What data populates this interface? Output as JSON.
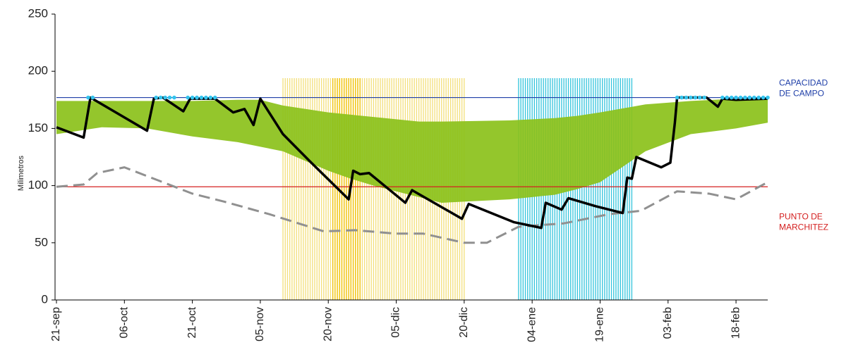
{
  "chart_data": {
    "type": "line",
    "y_label": "Milimetros",
    "xlim": [
      0,
      157
    ],
    "ylim": [
      0,
      250
    ],
    "yticks": [
      0,
      50,
      100,
      150,
      200,
      250
    ],
    "xticks": [
      {
        "value": 0,
        "label": "21-sep"
      },
      {
        "value": 15,
        "label": "06-oct"
      },
      {
        "value": 30,
        "label": "21-oct"
      },
      {
        "value": 45,
        "label": "05-nov"
      },
      {
        "value": 60,
        "label": "20-nov"
      },
      {
        "value": 75,
        "label": "05-dic"
      },
      {
        "value": 90,
        "label": "20-dic"
      },
      {
        "value": 105,
        "label": "04-ene"
      },
      {
        "value": 120,
        "label": "19-ene"
      },
      {
        "value": 135,
        "label": "03-feb"
      },
      {
        "value": 150,
        "label": "18-feb"
      }
    ],
    "stripe_bands": [
      {
        "start": 50,
        "end": 90,
        "top": 194,
        "color": "#f3df7a"
      },
      {
        "start": 61,
        "end": 67,
        "top": 194,
        "color": "#f0c000"
      },
      {
        "start": 102,
        "end": 127,
        "top": 194,
        "color": "#33c4dc"
      }
    ],
    "band": {
      "color": "#8cc21c",
      "x": [
        0,
        10,
        20,
        30,
        40,
        45,
        50,
        60,
        65,
        70,
        80,
        85,
        100,
        110,
        115,
        120,
        130,
        140,
        150,
        157
      ],
      "upper": [
        174,
        174,
        174,
        174,
        175,
        175,
        170,
        164,
        162,
        160,
        156,
        156,
        157,
        159,
        161,
        164,
        171,
        174,
        176,
        177
      ],
      "lower": [
        145,
        151,
        150,
        143,
        138,
        134,
        130,
        113,
        106,
        100,
        90,
        85,
        88,
        92,
        97,
        103,
        130,
        145,
        150,
        155
      ]
    },
    "reference_lines": [
      {
        "value": 177,
        "color": "#1f3fa8",
        "label": [
          "CAPACIDAD",
          "DE  CAMPO"
        ]
      },
      {
        "value": 99,
        "color": "#d42020",
        "label": [
          "PUNTO  DE",
          "MARCHITEZ"
        ]
      }
    ],
    "series": [
      {
        "color": "#909090",
        "dashed": true,
        "width": 3,
        "x": [
          0,
          6,
          9,
          15,
          30,
          37,
          47,
          59,
          66,
          75,
          81,
          90,
          95,
          102,
          112,
          122,
          129,
          137,
          144,
          150,
          157
        ],
        "values": [
          99,
          101,
          111,
          116,
          93,
          86,
          75,
          60,
          61,
          58,
          58,
          50,
          50,
          64,
          67,
          75,
          78,
          95,
          93,
          88,
          103
        ]
      },
      {
        "color": "#000000",
        "dashed": false,
        "width": 3.5,
        "x": [
          0,
          6,
          7.5,
          20,
          21.5,
          23.5,
          28,
          29.5,
          35,
          39,
          41.5,
          43.5,
          45,
          50,
          56,
          64.5,
          65.5,
          67,
          69,
          77,
          78.5,
          89.5,
          91,
          101,
          107,
          108,
          111.5,
          113,
          119,
          125,
          126,
          127,
          128,
          133.5,
          135.5,
          136.5,
          137,
          143.5,
          146,
          147,
          150,
          157
        ],
        "values": [
          151,
          142,
          177,
          148,
          176,
          177,
          165,
          176,
          176,
          164,
          167,
          153,
          176,
          145,
          121,
          88,
          113,
          110,
          111,
          85,
          96,
          71,
          84,
          68,
          63,
          85,
          79,
          89,
          82,
          76,
          107,
          106,
          125,
          116,
          120,
          155,
          177,
          177,
          169,
          176,
          175,
          176
        ]
      }
    ],
    "capacity_dots": {
      "color": "#33c4ee",
      "value": 177,
      "x": [
        7,
        8,
        22,
        23,
        24,
        25,
        26,
        29,
        30,
        31,
        32,
        33,
        34,
        35,
        137,
        138,
        139,
        140,
        141,
        142,
        143,
        147,
        148,
        149,
        150,
        151,
        152,
        153,
        154,
        155,
        156,
        157
      ]
    }
  }
}
